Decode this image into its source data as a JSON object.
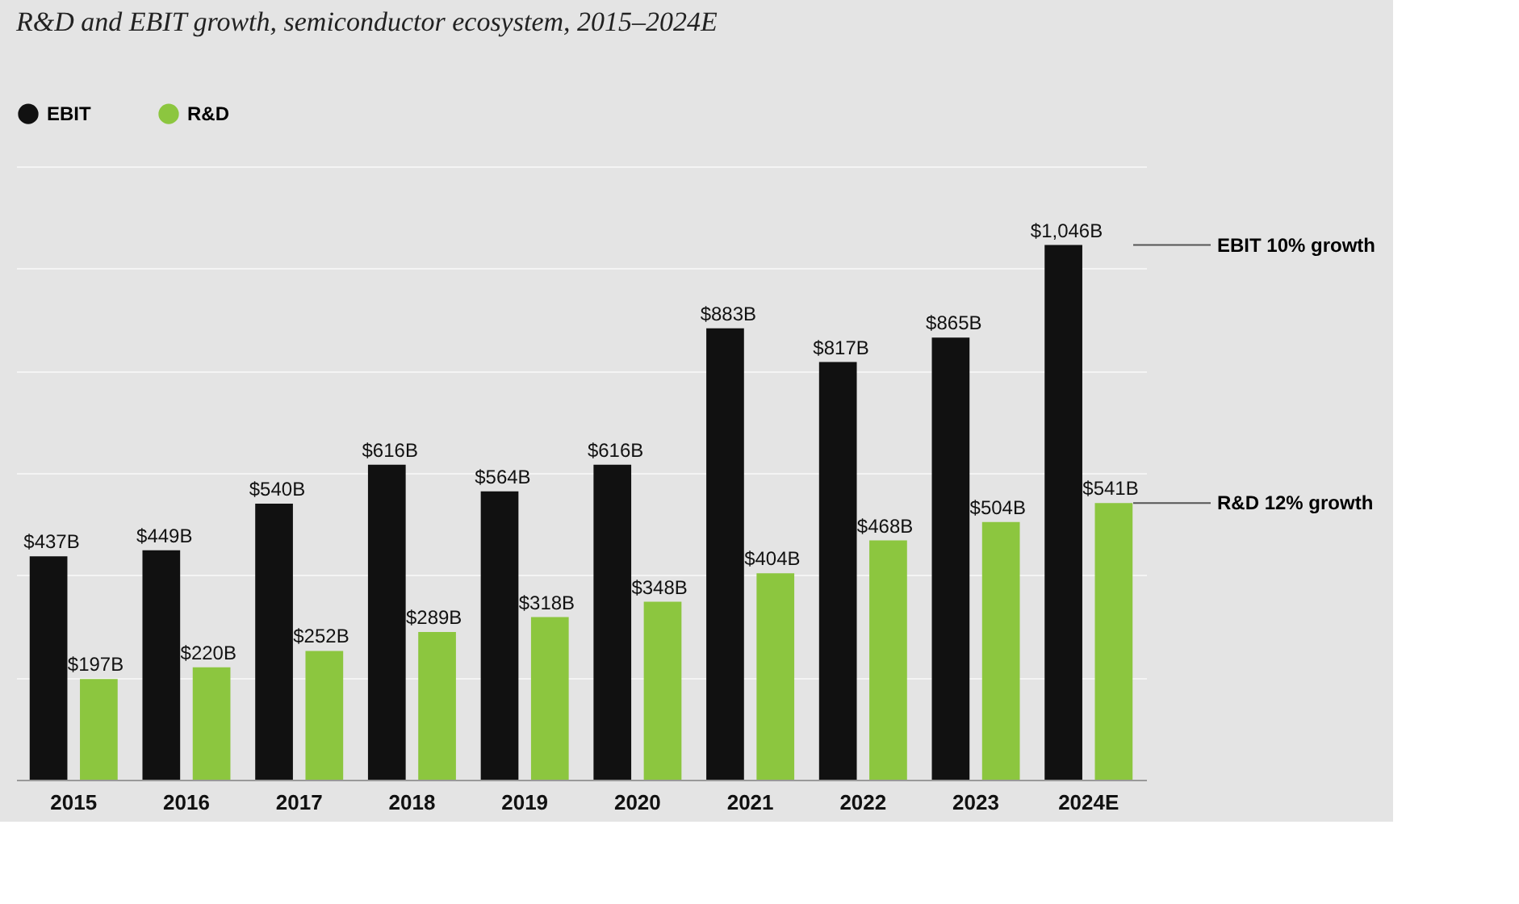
{
  "chart_data": {
    "type": "bar",
    "title": "R&D and EBIT growth, semiconductor ecosystem, 2015–2024E",
    "categories": [
      "2015",
      "2016",
      "2017",
      "2018",
      "2019",
      "2020",
      "2021",
      "2022",
      "2023",
      "2024E"
    ],
    "series": [
      {
        "name": "EBIT",
        "color": "#111111",
        "values": [
          437,
          449,
          540,
          616,
          564,
          616,
          883,
          817,
          865,
          1046
        ],
        "value_labels": [
          "$437B",
          "$449B",
          "$540B",
          "$616B",
          "$564B",
          "$616B",
          "$883B",
          "$817B",
          "$865B",
          "$1,046B"
        ]
      },
      {
        "name": "R&D",
        "color": "#8cc63f",
        "values": [
          197,
          220,
          252,
          289,
          318,
          348,
          404,
          468,
          504,
          541
        ],
        "value_labels": [
          "$197B",
          "$220B",
          "$252B",
          "$289B",
          "$318B",
          "$348B",
          "$404B",
          "$468B",
          "$504B",
          "$541B"
        ]
      }
    ],
    "annotations": [
      "EBIT 10% growth",
      "R&D 12% growth"
    ],
    "ylim": [
      0,
      1200
    ],
    "yticks": [
      0,
      200,
      400,
      600,
      800,
      1000,
      1200
    ],
    "tick_labels": "x",
    "grid": "y",
    "legend": "top left"
  }
}
